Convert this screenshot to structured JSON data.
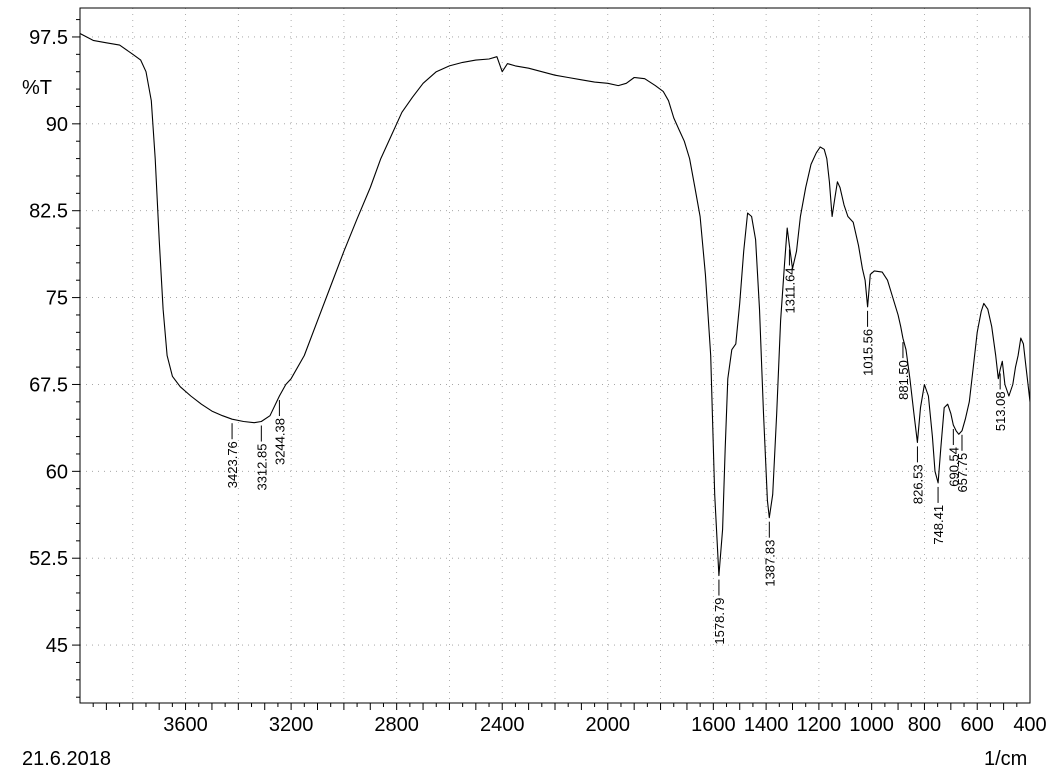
{
  "chart_data": {
    "type": "line",
    "ylabel": "%T",
    "xunit": "1/cm",
    "date": "21.6.2018",
    "xlim": [
      4000,
      400
    ],
    "ylim": [
      40,
      100
    ],
    "xticks": [
      3600,
      3200,
      2800,
      2400,
      2000,
      1600,
      1400,
      1200,
      1000,
      800,
      600,
      400
    ],
    "xtick_labels_extra": [],
    "yticks": [
      97.5,
      90,
      82.5,
      75,
      67.5,
      60,
      52.5,
      45
    ],
    "grid": true,
    "series": [
      {
        "points": [
          [
            4000,
            97.8
          ],
          [
            3950,
            97.2
          ],
          [
            3900,
            97.0
          ],
          [
            3850,
            96.8
          ],
          [
            3800,
            96.0
          ],
          [
            3770,
            95.5
          ],
          [
            3750,
            94.5
          ],
          [
            3730,
            92.0
          ],
          [
            3715,
            87.0
          ],
          [
            3700,
            80.0
          ],
          [
            3685,
            74.0
          ],
          [
            3670,
            70.0
          ],
          [
            3650,
            68.2
          ],
          [
            3620,
            67.3
          ],
          [
            3580,
            66.5
          ],
          [
            3540,
            65.8
          ],
          [
            3500,
            65.2
          ],
          [
            3460,
            64.8
          ],
          [
            3423.76,
            64.5
          ],
          [
            3380,
            64.3
          ],
          [
            3340,
            64.2
          ],
          [
            3312.85,
            64.3
          ],
          [
            3280,
            64.8
          ],
          [
            3244.38,
            66.5
          ],
          [
            3220,
            67.5
          ],
          [
            3200,
            68.0
          ],
          [
            3150,
            70.0
          ],
          [
            3100,
            73.0
          ],
          [
            3050,
            76.0
          ],
          [
            3000,
            79.0
          ],
          [
            2950,
            81.8
          ],
          [
            2900,
            84.5
          ],
          [
            2860,
            87.0
          ],
          [
            2820,
            89.0
          ],
          [
            2780,
            91.0
          ],
          [
            2740,
            92.3
          ],
          [
            2700,
            93.5
          ],
          [
            2650,
            94.5
          ],
          [
            2600,
            95.0
          ],
          [
            2550,
            95.3
          ],
          [
            2500,
            95.5
          ],
          [
            2450,
            95.6
          ],
          [
            2420,
            95.8
          ],
          [
            2400,
            94.5
          ],
          [
            2380,
            95.2
          ],
          [
            2350,
            95.0
          ],
          [
            2300,
            94.8
          ],
          [
            2250,
            94.5
          ],
          [
            2200,
            94.2
          ],
          [
            2150,
            94.0
          ],
          [
            2100,
            93.8
          ],
          [
            2050,
            93.6
          ],
          [
            2000,
            93.5
          ],
          [
            1960,
            93.3
          ],
          [
            1930,
            93.5
          ],
          [
            1900,
            94.0
          ],
          [
            1860,
            93.9
          ],
          [
            1820,
            93.3
          ],
          [
            1790,
            92.8
          ],
          [
            1770,
            92.0
          ],
          [
            1750,
            90.5
          ],
          [
            1730,
            89.5
          ],
          [
            1710,
            88.5
          ],
          [
            1690,
            87.0
          ],
          [
            1670,
            84.5
          ],
          [
            1650,
            82.0
          ],
          [
            1630,
            77.0
          ],
          [
            1610,
            70.0
          ],
          [
            1595,
            58.0
          ],
          [
            1578.79,
            51.0
          ],
          [
            1565,
            55.0
          ],
          [
            1555,
            62.0
          ],
          [
            1545,
            68.0
          ],
          [
            1530,
            70.5
          ],
          [
            1515,
            71.0
          ],
          [
            1500,
            74.5
          ],
          [
            1485,
            79.0
          ],
          [
            1470,
            82.3
          ],
          [
            1455,
            82.0
          ],
          [
            1440,
            80.0
          ],
          [
            1425,
            74.0
          ],
          [
            1410,
            65.0
          ],
          [
            1395,
            57.5
          ],
          [
            1387.83,
            56.0
          ],
          [
            1375,
            58.0
          ],
          [
            1360,
            65.0
          ],
          [
            1345,
            73.0
          ],
          [
            1330,
            78.0
          ],
          [
            1320,
            81.0
          ],
          [
            1311.64,
            79.5
          ],
          [
            1300,
            77.5
          ],
          [
            1285,
            79.0
          ],
          [
            1270,
            82.0
          ],
          [
            1250,
            84.5
          ],
          [
            1230,
            86.5
          ],
          [
            1210,
            87.5
          ],
          [
            1195,
            88.0
          ],
          [
            1180,
            87.8
          ],
          [
            1170,
            87.0
          ],
          [
            1160,
            85.0
          ],
          [
            1150,
            82.0
          ],
          [
            1140,
            83.5
          ],
          [
            1130,
            85.0
          ],
          [
            1120,
            84.5
          ],
          [
            1105,
            83.0
          ],
          [
            1090,
            82.0
          ],
          [
            1070,
            81.5
          ],
          [
            1050,
            79.5
          ],
          [
            1035,
            77.5
          ],
          [
            1025,
            76.5
          ],
          [
            1015.56,
            74.2
          ],
          [
            1005,
            77.0
          ],
          [
            990,
            77.3
          ],
          [
            960,
            77.2
          ],
          [
            940,
            76.5
          ],
          [
            920,
            75.0
          ],
          [
            900,
            73.5
          ],
          [
            890,
            72.5
          ],
          [
            881.5,
            71.5
          ],
          [
            870,
            70.5
          ],
          [
            855,
            68.0
          ],
          [
            840,
            65.0
          ],
          [
            826.53,
            62.5
          ],
          [
            815,
            65.5
          ],
          [
            800,
            67.5
          ],
          [
            785,
            66.5
          ],
          [
            770,
            63.0
          ],
          [
            760,
            60.0
          ],
          [
            748.41,
            59.0
          ],
          [
            738,
            62.0
          ],
          [
            725,
            65.5
          ],
          [
            712,
            65.8
          ],
          [
            700,
            65.0
          ],
          [
            690.54,
            64.0
          ],
          [
            680,
            63.5
          ],
          [
            670,
            63.2
          ],
          [
            657.75,
            63.5
          ],
          [
            645,
            64.5
          ],
          [
            630,
            66.0
          ],
          [
            615,
            69.0
          ],
          [
            600,
            72.0
          ],
          [
            585,
            73.8
          ],
          [
            575,
            74.5
          ],
          [
            560,
            74.0
          ],
          [
            545,
            72.5
          ],
          [
            530,
            70.0
          ],
          [
            520,
            68.0
          ],
          [
            513.08,
            68.8
          ],
          [
            505,
            69.5
          ],
          [
            495,
            67.5
          ],
          [
            480,
            66.5
          ],
          [
            465,
            67.5
          ],
          [
            455,
            69.0
          ],
          [
            445,
            70.0
          ],
          [
            435,
            71.5
          ],
          [
            425,
            71.0
          ],
          [
            415,
            69.0
          ],
          [
            405,
            67.0
          ],
          [
            400,
            66.0
          ]
        ]
      }
    ],
    "peak_labels": [
      {
        "x": 3423.76,
        "y": 64.5,
        "label": "3423.76"
      },
      {
        "x": 3312.85,
        "y": 64.3,
        "label": "3312.85"
      },
      {
        "x": 3244.38,
        "y": 66.5,
        "label": "3244.38"
      },
      {
        "x": 1578.79,
        "y": 51.0,
        "label": "1578.79"
      },
      {
        "x": 1387.83,
        "y": 56.0,
        "label": "1387.83"
      },
      {
        "x": 1311.64,
        "y": 79.5,
        "label": "1311.64"
      },
      {
        "x": 1015.56,
        "y": 74.2,
        "label": "1015.56"
      },
      {
        "x": 881.5,
        "y": 71.5,
        "label": "881.50"
      },
      {
        "x": 826.53,
        "y": 62.5,
        "label": "826.53"
      },
      {
        "x": 748.41,
        "y": 59.0,
        "label": "748.41"
      },
      {
        "x": 690.54,
        "y": 64.0,
        "label": "690.54"
      },
      {
        "x": 657.75,
        "y": 63.5,
        "label": "657.75"
      },
      {
        "x": 513.08,
        "y": 68.8,
        "label": "513.08"
      }
    ]
  }
}
